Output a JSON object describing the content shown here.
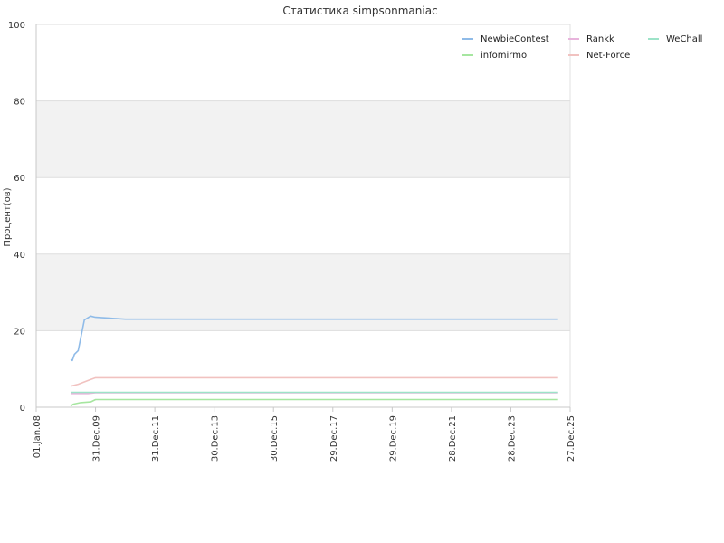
{
  "chart_data": {
    "type": "line",
    "title": "Статистика simpsonmaniac",
    "ylabel": "Процент(ов)",
    "xlabel": "",
    "ylim": [
      0,
      100
    ],
    "y_ticks": [
      0,
      20,
      40,
      60,
      80,
      100
    ],
    "x_tick_labels": [
      "01.Jan.08",
      "31.Dec.09",
      "31.Dec.11",
      "30.Dec.13",
      "30.Dec.15",
      "29.Dec.17",
      "29.Dec.19",
      "28.Dec.21",
      "28.Dec.23",
      "27.Dec.25"
    ],
    "x_range": [
      "2008-01-01",
      "2025-12-27"
    ],
    "grid": "horizontal, alternating bands",
    "legend_placement": "top-right",
    "series": [
      {
        "name": "NewbieContest",
        "color": "#8fbbe8",
        "points": [
          [
            "2009-03-01",
            12.5
          ],
          [
            "2009-03-20",
            12.2
          ],
          [
            "2009-04-15",
            13.8
          ],
          [
            "2009-06-01",
            14.8
          ],
          [
            "2009-08-15",
            22.8
          ],
          [
            "2009-11-01",
            23.8
          ],
          [
            "2010-01-01",
            23.5
          ],
          [
            "2010-06-01",
            23.3
          ],
          [
            "2011-01-01",
            23.0
          ],
          [
            "2025-08-01",
            23.0
          ]
        ]
      },
      {
        "name": "Rankk",
        "color": "#e8b4dc",
        "points": [
          [
            "2009-03-01",
            3.6
          ],
          [
            "2009-06-01",
            3.6
          ],
          [
            "2009-10-01",
            3.6
          ],
          [
            "2010-01-01",
            3.8
          ],
          [
            "2025-08-01",
            3.8
          ]
        ]
      },
      {
        "name": "WeChall",
        "color": "#9de3c8",
        "points": [
          [
            "2009-03-01",
            3.9
          ],
          [
            "2010-01-01",
            3.9
          ],
          [
            "2025-08-01",
            3.9
          ]
        ]
      },
      {
        "name": "infomirmo",
        "color": "#a6e6a0",
        "points": [
          [
            "2009-03-01",
            0.3
          ],
          [
            "2009-04-01",
            0.8
          ],
          [
            "2009-07-01",
            1.2
          ],
          [
            "2009-11-01",
            1.4
          ],
          [
            "2010-01-01",
            2.0
          ],
          [
            "2025-08-01",
            2.0
          ]
        ]
      },
      {
        "name": "Net-Force",
        "color": "#f1c2c0",
        "points": [
          [
            "2009-03-01",
            5.5
          ],
          [
            "2009-06-01",
            6.0
          ],
          [
            "2009-10-01",
            7.0
          ],
          [
            "2010-01-01",
            7.7
          ],
          [
            "2025-08-01",
            7.7
          ]
        ]
      }
    ]
  }
}
